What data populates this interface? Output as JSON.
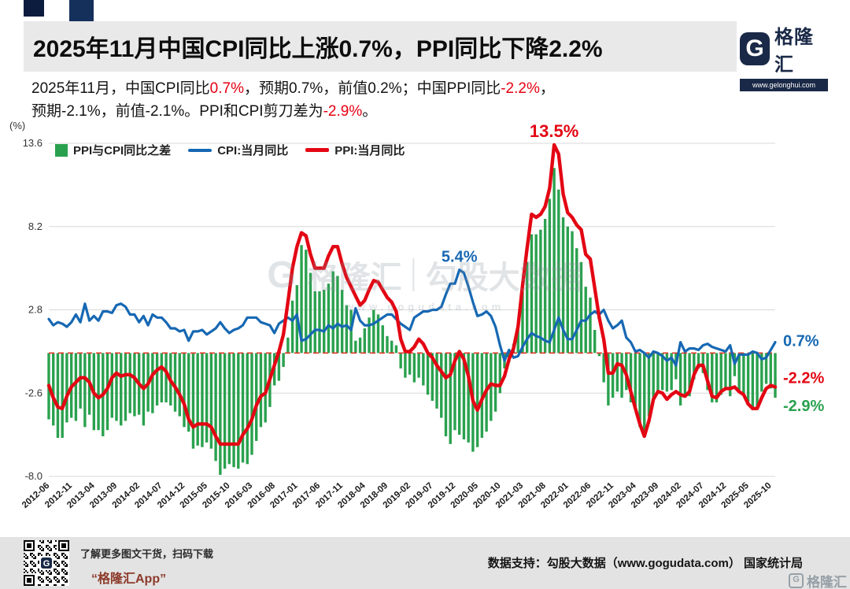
{
  "header": {
    "title": "2025年11月中国CPI同比上涨0.7%，PPI同比下降2.2%",
    "logo": {
      "g": "G",
      "brand": "格隆汇",
      "url": "www.gelonghui.com"
    },
    "subtitle_segments": [
      {
        "text": "2025年11月，中国CPI同比",
        "red": false
      },
      {
        "text": "0.7%",
        "red": true
      },
      {
        "text": "，预期0.7%，前值0.2%；中国PPI同比",
        "red": false
      },
      {
        "text": "-2.2%",
        "red": true
      },
      {
        "text": "，\n预期-2.1%，前值-2.1%。PPI和CPI剪刀差为",
        "red": false
      },
      {
        "text": "-2.9%",
        "red": true
      },
      {
        "text": "。",
        "red": false
      }
    ]
  },
  "chart_data": {
    "type": "combo",
    "unit_label": "(%)",
    "ylim": [
      -8.0,
      13.6
    ],
    "y_ticks": [
      13.6,
      8.2,
      2.8,
      -2.6,
      -8.0
    ],
    "x_start": "2012-06",
    "x_end": "2025-11",
    "x_freq": "monthly",
    "grid": "horizontal",
    "legend_position": "top-left",
    "zero_line": {
      "style": "dashed",
      "color": "#e2392b"
    },
    "x_tick_labels": [
      "2012-06",
      "2012-11",
      "2013-04",
      "2013-09",
      "2014-02",
      "2014-07",
      "2014-12",
      "2015-05",
      "2015-10",
      "2016-03",
      "2016-08",
      "2017-01",
      "2017-06",
      "2017-11",
      "2018-04",
      "2018-09",
      "2019-02",
      "2019-07",
      "2019-12",
      "2020-05",
      "2020-10",
      "2021-03",
      "2021-08",
      "2022-01",
      "2022-06",
      "2022-11",
      "2023-04",
      "2023-09",
      "2024-02",
      "2024-07",
      "2024-12",
      "2025-05",
      "2025-10"
    ],
    "legend": [
      {
        "label": "PPI与CPI同比之差",
        "type": "bar",
        "color": "#2aa14e"
      },
      {
        "label": "CPI:当月同比",
        "type": "line",
        "color": "#1668b3"
      },
      {
        "label": "PPI:当月同比",
        "type": "line",
        "color": "#e30613"
      }
    ],
    "series": [
      {
        "name": "CPI:当月同比",
        "type": "line",
        "color": "#1668b3",
        "width": 3.2,
        "values": [
          2.2,
          1.8,
          2.0,
          1.9,
          1.7,
          2.0,
          2.5,
          2.0,
          3.2,
          2.1,
          2.4,
          2.1,
          2.7,
          2.7,
          2.6,
          3.1,
          3.2,
          3.0,
          2.5,
          2.5,
          2.0,
          2.4,
          1.8,
          2.5,
          2.3,
          2.3,
          2.0,
          1.6,
          1.6,
          1.4,
          1.5,
          0.8,
          1.4,
          1.4,
          1.5,
          1.2,
          1.4,
          1.6,
          2.0,
          1.6,
          1.3,
          1.5,
          1.6,
          1.8,
          2.3,
          2.3,
          2.3,
          2.0,
          1.9,
          1.8,
          1.3,
          1.9,
          2.1,
          2.3,
          2.1,
          2.5,
          0.8,
          0.9,
          1.2,
          1.5,
          1.5,
          1.4,
          1.8,
          1.6,
          1.9,
          1.7,
          1.8,
          1.5,
          2.9,
          2.1,
          1.8,
          1.8,
          1.9,
          2.1,
          2.3,
          2.5,
          2.5,
          2.2,
          1.9,
          1.7,
          1.5,
          2.3,
          2.5,
          2.7,
          2.7,
          2.8,
          2.8,
          3.0,
          3.8,
          4.5,
          4.5,
          5.4,
          5.2,
          4.3,
          3.3,
          2.4,
          2.5,
          2.7,
          2.4,
          1.7,
          0.5,
          -0.5,
          0.2,
          -0.3,
          -0.2,
          0.4,
          0.9,
          1.3,
          1.1,
          1.0,
          0.8,
          0.7,
          1.5,
          2.3,
          1.5,
          0.9,
          0.9,
          1.5,
          2.1,
          2.1,
          2.5,
          2.7,
          2.5,
          2.8,
          2.1,
          1.6,
          1.8,
          2.1,
          1.0,
          0.7,
          0.1,
          0.2,
          0.0,
          -0.3,
          0.1,
          0.0,
          -0.2,
          -0.5,
          -0.3,
          -0.8,
          0.7,
          0.1,
          0.3,
          0.3,
          0.2,
          0.5,
          0.6,
          0.4,
          0.3,
          0.2,
          0.1,
          0.5,
          -0.7,
          -0.1,
          -0.1,
          -0.1,
          0.1,
          0.0,
          -0.4,
          -0.3,
          0.2,
          0.7
        ]
      },
      {
        "name": "PPI:当月同比",
        "type": "line",
        "color": "#e30613",
        "width": 4.4,
        "values": [
          -2.1,
          -2.9,
          -3.5,
          -3.6,
          -2.8,
          -2.2,
          -1.9,
          -1.6,
          -1.6,
          -1.9,
          -2.6,
          -2.9,
          -2.7,
          -2.3,
          -1.6,
          -1.3,
          -1.5,
          -1.4,
          -1.4,
          -1.6,
          -2.0,
          -2.3,
          -2.0,
          -1.4,
          -1.1,
          -0.9,
          -1.2,
          -1.8,
          -2.2,
          -2.7,
          -3.3,
          -4.3,
          -4.8,
          -4.6,
          -4.6,
          -4.6,
          -4.8,
          -5.4,
          -5.9,
          -5.9,
          -5.9,
          -5.9,
          -5.9,
          -5.3,
          -4.9,
          -4.3,
          -3.4,
          -2.8,
          -2.6,
          -1.7,
          -0.8,
          0.1,
          1.2,
          3.3,
          5.5,
          6.9,
          7.8,
          7.6,
          6.4,
          5.5,
          5.5,
          5.5,
          6.3,
          6.9,
          6.9,
          5.8,
          4.9,
          4.3,
          3.7,
          3.1,
          3.4,
          4.1,
          4.7,
          4.6,
          4.1,
          3.6,
          3.3,
          2.7,
          0.9,
          0.1,
          0.1,
          0.4,
          0.9,
          0.6,
          0.0,
          -0.3,
          -0.8,
          -1.2,
          -1.6,
          -1.4,
          -0.5,
          0.1,
          -0.4,
          -1.5,
          -3.1,
          -3.7,
          -3.0,
          -2.4,
          -2.0,
          -2.1,
          -2.1,
          -1.5,
          -0.4,
          0.3,
          1.7,
          4.4,
          6.8,
          9.0,
          8.8,
          9.0,
          9.5,
          10.7,
          13.5,
          12.9,
          10.3,
          9.1,
          8.8,
          8.3,
          8.0,
          6.4,
          6.1,
          4.2,
          2.3,
          0.9,
          -1.3,
          -1.3,
          -0.7,
          -0.8,
          -1.4,
          -2.5,
          -3.6,
          -4.6,
          -5.4,
          -4.4,
          -3.0,
          -2.5,
          -2.6,
          -3.0,
          -2.7,
          -2.5,
          -2.7,
          -2.8,
          -2.5,
          -1.4,
          -0.8,
          -0.8,
          -1.8,
          -2.8,
          -2.9,
          -2.5,
          -2.3,
          -2.3,
          -2.2,
          -2.5,
          -2.7,
          -3.3,
          -3.6,
          -3.6,
          -2.9,
          -2.3,
          -2.1,
          -2.2
        ]
      },
      {
        "name": "PPI与CPI同比之差",
        "type": "bar",
        "color": "#2aa14e",
        "derived": "PPI - CPI"
      }
    ],
    "annotations": [
      {
        "text": "13.5%",
        "color": "#e30613",
        "position": "above",
        "month": "2021-10",
        "value": 13.5,
        "size": 22
      },
      {
        "text": "5.4%",
        "color": "#1668b3",
        "position": "above",
        "month": "2020-01",
        "value": 5.4,
        "size": 20
      },
      {
        "text": "0.7%",
        "color": "#1668b3",
        "position": "right",
        "value": 0.7,
        "dy": -2,
        "size": 20
      },
      {
        "text": "-2.2%",
        "color": "#e30613",
        "position": "right",
        "value": -2.2,
        "dy": -12,
        "size": 20
      },
      {
        "text": "-2.9%",
        "color": "#2aa14e",
        "position": "right",
        "value": -2.9,
        "dy": 10,
        "size": 20
      }
    ],
    "watermark": {
      "g": "G",
      "brand": "格隆汇",
      "name": "勾股大数据",
      "url": "www.gogudata.com"
    }
  },
  "footer": {
    "qr_caption": "了解更多图文干货，扫码下载",
    "app_label": "“格隆汇App”",
    "data_support": "数据支持：勾股大数据（www.gogudata.com） 国家统计局",
    "corner_brand": "格隆汇",
    "corner_g": "G"
  }
}
